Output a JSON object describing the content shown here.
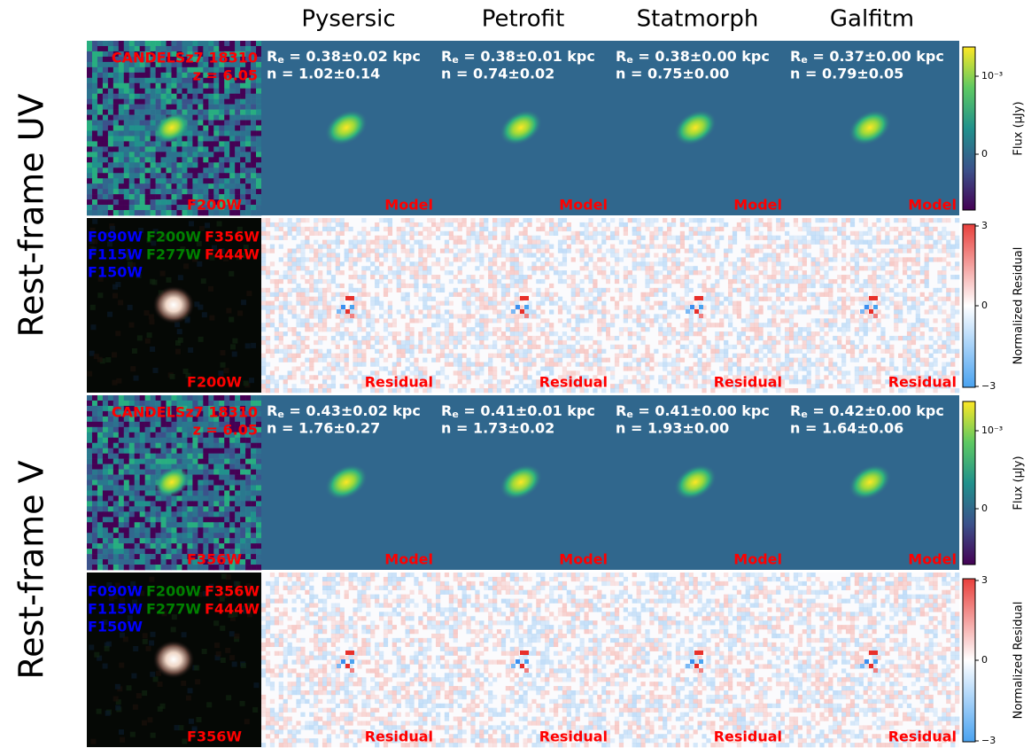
{
  "column_titles": [
    "Pysersic",
    "Petrofit",
    "Statmorph",
    "Galfitm"
  ],
  "row_group_labels": [
    "Rest-frame UV",
    "Rest-frame V"
  ],
  "re_symbol": "R",
  "re_subscript": "e",
  "model_label": "Model",
  "residual_label": "Residual",
  "rgb_filters": [
    [
      "F090W",
      "F200W",
      "F356W"
    ],
    [
      "F115W",
      "F277W",
      "F444W"
    ],
    [
      "F150W"
    ]
  ],
  "groups": [
    {
      "target": "CANDELSz7 18310",
      "redshift": "z = 6.05",
      "filter": "F200W",
      "fits": [
        {
          "re": " = 0.38±0.02 kpc",
          "n": "n = 1.02±0.14"
        },
        {
          "re": " = 0.38±0.01 kpc",
          "n": "n = 0.74±0.02"
        },
        {
          "re": " = 0.38±0.00 kpc",
          "n": "n = 0.75±0.00"
        },
        {
          "re": " = 0.37±0.00 kpc",
          "n": "n = 0.79±0.05"
        }
      ]
    },
    {
      "target": "CANDELSz7 18310",
      "redshift": "z = 6.05",
      "filter": "F356W",
      "fits": [
        {
          "re": " = 0.43±0.02 kpc",
          "n": "n = 1.76±0.27"
        },
        {
          "re": " = 0.41±0.01 kpc",
          "n": "n = 1.73±0.02"
        },
        {
          "re": " = 0.41±0.00 kpc",
          "n": "n = 1.93±0.00"
        },
        {
          "re": " = 0.42±0.00 kpc",
          "n": "n = 1.64±0.06"
        }
      ]
    }
  ],
  "colorbars": {
    "flux": {
      "label": "Flux (μJy)",
      "ticks": [
        "10⁻³",
        "0"
      ]
    },
    "residual": {
      "label": "Normalized Residual",
      "ticks": [
        "3",
        "0",
        "−3"
      ]
    }
  }
}
